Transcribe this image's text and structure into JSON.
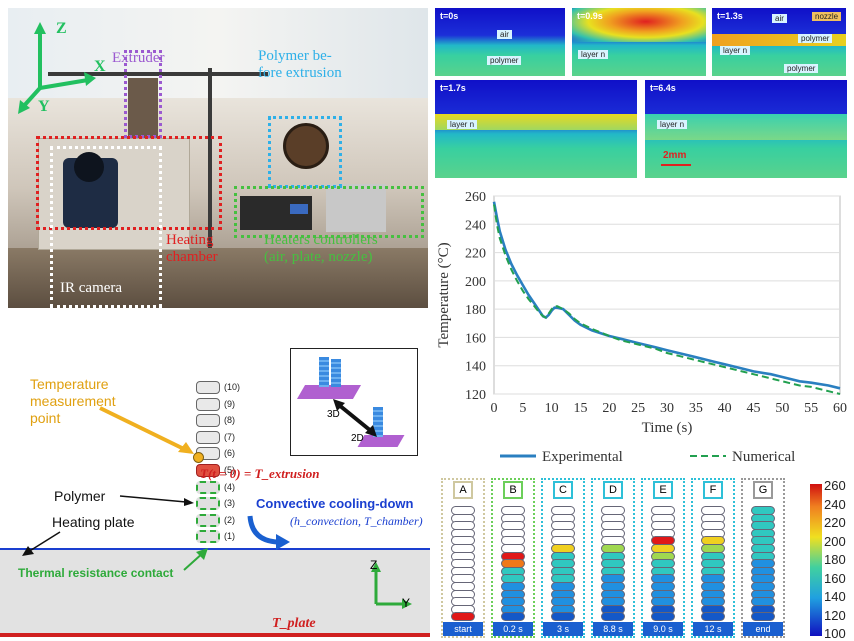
{
  "photo": {
    "extruder": "Extruder",
    "polymer_before": "Polymer be-\nfore extrusion",
    "heating_chamber": "Heating\nchamber",
    "heaters_controllers": "Heaters controllers\n(air, plate, nozzle)",
    "ir_camera": "IR camera",
    "axis_z": "Z",
    "axis_x": "X",
    "axis_y": "Y",
    "colors": {
      "extruder": "#9b59d0",
      "polymer": "#2eb0e8",
      "chamber": "#e02020",
      "controllers": "#46c040",
      "camera": "#ffffff",
      "axes": "#22c060"
    }
  },
  "thermal_frames": [
    {
      "time": "t=0s",
      "labels": [
        "air",
        "polymer"
      ]
    },
    {
      "time": "t=0.9s",
      "labels": [
        "layer n"
      ]
    },
    {
      "time": "t=1.3s",
      "labels": [
        "air",
        "nozzle",
        "polymer",
        "layer n",
        "polymer"
      ]
    },
    {
      "time": "t=1.7s",
      "labels": [
        "layer n"
      ]
    },
    {
      "time": "t=6.4s",
      "labels": [
        "layer n",
        "2mm"
      ]
    }
  ],
  "chart_data": {
    "type": "line",
    "xlabel": "Time (s)",
    "ylabel": "Temperature (°C)",
    "xlim": [
      0,
      60
    ],
    "ylim": [
      120,
      260
    ],
    "xticks": [
      0,
      5,
      10,
      15,
      20,
      25,
      30,
      35,
      40,
      45,
      50,
      55,
      60
    ],
    "yticks": [
      120,
      140,
      160,
      180,
      200,
      220,
      240,
      260
    ],
    "legend_position": "bottom",
    "series": [
      {
        "name": "Experimental",
        "color": "#2a7fc0",
        "style": "solid",
        "x": [
          0,
          0.5,
          1,
          2,
          3,
          4,
          5,
          6,
          7,
          8,
          8.5,
          9,
          9.5,
          10,
          10.5,
          11,
          12,
          13,
          14,
          15,
          17,
          20,
          22,
          25,
          28,
          30,
          33,
          35,
          38,
          40,
          43,
          45,
          48,
          50,
          53,
          55,
          58,
          60
        ],
        "y": [
          256,
          245,
          235,
          222,
          212,
          204,
          197,
          190,
          184,
          178,
          175,
          174,
          176,
          179,
          181,
          181,
          180,
          176,
          172,
          169,
          165,
          161,
          159,
          156,
          153,
          151,
          148,
          146,
          143,
          141,
          138,
          136,
          134,
          132,
          129,
          128,
          126,
          124
        ]
      },
      {
        "name": "Numerical",
        "color": "#22a050",
        "style": "dashed",
        "x": [
          0,
          0.5,
          1,
          2,
          3,
          4,
          5,
          6,
          7,
          8,
          8.5,
          9,
          9.5,
          10,
          10.5,
          11,
          12,
          13,
          14,
          15,
          17,
          20,
          22,
          25,
          28,
          30,
          33,
          35,
          38,
          40,
          43,
          45,
          48,
          50,
          53,
          55,
          58,
          60
        ],
        "y": [
          254,
          240,
          230,
          218,
          208,
          200,
          193,
          187,
          182,
          177,
          175,
          174,
          177,
          180,
          182,
          182,
          180,
          177,
          173,
          170,
          166,
          161,
          158,
          155,
          152,
          149,
          146,
          144,
          141,
          139,
          136,
          134,
          131,
          129,
          126,
          125,
          122,
          120
        ]
      }
    ]
  },
  "schematic": {
    "temp_point": "Temperature\nmeasurement\npoint",
    "polymer": "Polymer",
    "heating_plate": "Heating plate",
    "thermal_resistance": "Thermal resistance contact",
    "convective": "Convective cooling-down",
    "convective_sub": "(h_convection, T_chamber)",
    "t_formula": "T(t = 0) = T_extrusion",
    "t_plate": "T_plate",
    "layer_numbers": [
      "(10)",
      "(9)",
      "(8)",
      "(7)",
      "(6)",
      "(5)",
      "(4)",
      "(3)",
      "(2)",
      "(1)"
    ],
    "inset_3d": "3D",
    "inset_2d": "2D",
    "axis_z": "Z",
    "axis_y": "Y"
  },
  "columns": [
    {
      "letter": "A",
      "footer": "start",
      "color": "#cfc8a0"
    },
    {
      "letter": "B",
      "footer": "0.2 s",
      "color": "#6ccf5a"
    },
    {
      "letter": "C",
      "footer": "3 s",
      "color": "#2ec0d8"
    },
    {
      "letter": "D",
      "footer": "8.8 s",
      "color": "#2ec0d8"
    },
    {
      "letter": "E",
      "footer": "9.0 s",
      "color": "#2ec0d8"
    },
    {
      "letter": "F",
      "footer": "12 s",
      "color": "#2ec0d8"
    },
    {
      "letter": "G",
      "footer": "end",
      "color": "#999999"
    }
  ],
  "colorbar": {
    "ticks": [
      "260",
      "240",
      "220",
      "200",
      "180",
      "160",
      "140",
      "120",
      "100"
    ]
  }
}
